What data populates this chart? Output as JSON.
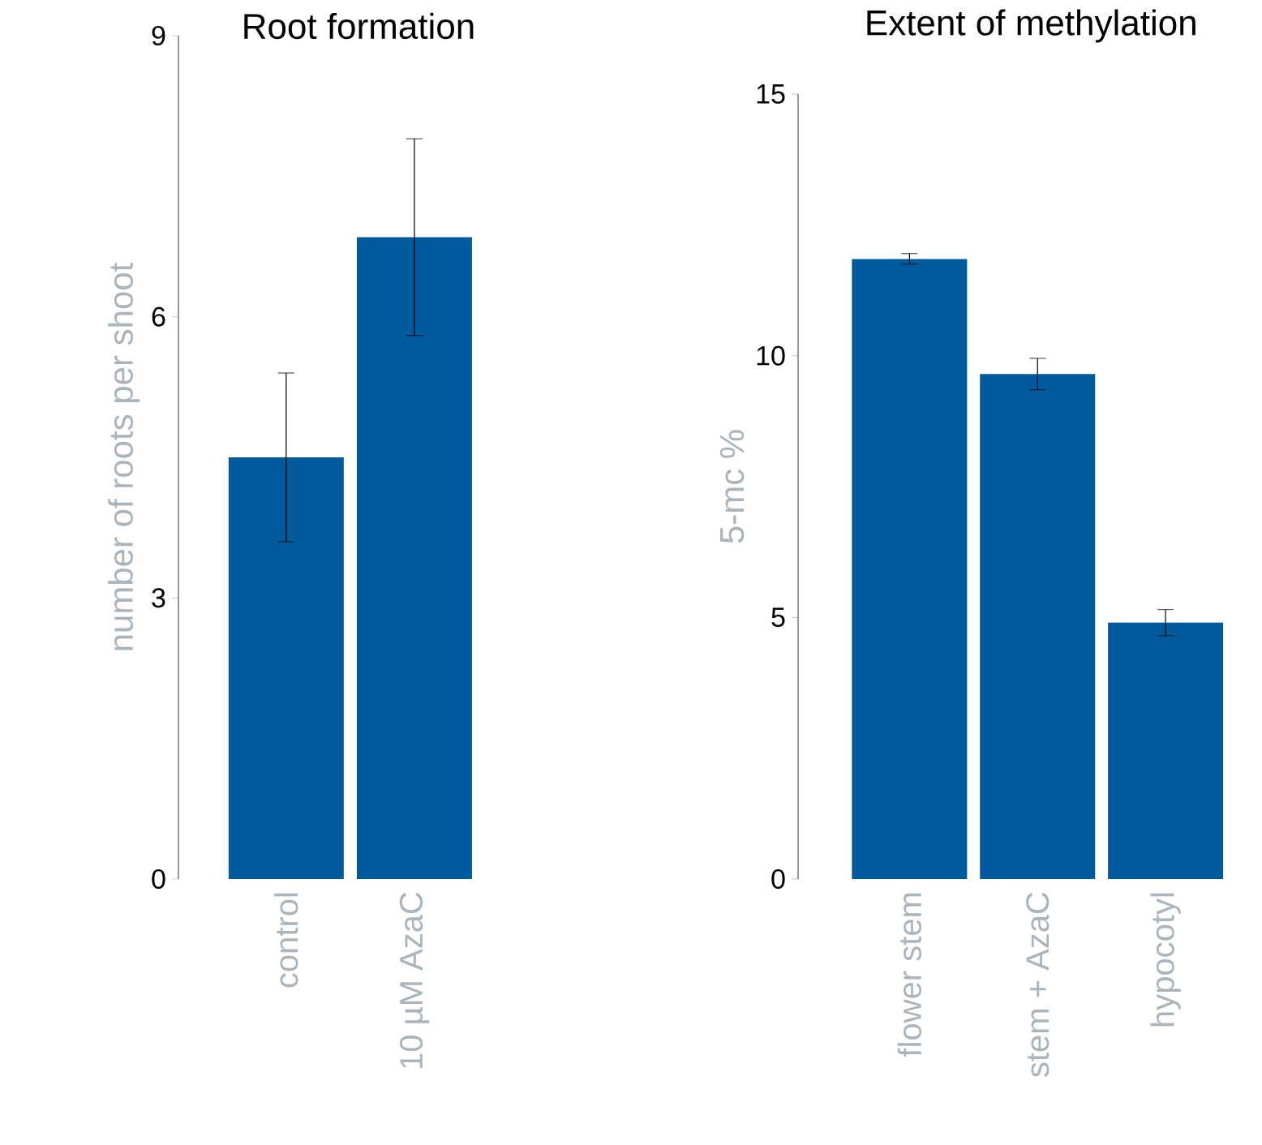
{
  "chart_data": [
    {
      "type": "bar",
      "title": "Root formation",
      "ylabel": "number of roots per shoot",
      "categories": [
        "control",
        "10 µM AzaC"
      ],
      "values": [
        4.5,
        6.85
      ],
      "errors": [
        0.9,
        1.05
      ],
      "color": "#005a9c",
      "ylim": [
        0,
        9
      ],
      "yticks": [
        0,
        3,
        6,
        9
      ],
      "grid": false
    },
    {
      "type": "bar",
      "title": "Extent of methylation",
      "ylabel": "5-mc %",
      "categories": [
        "flower stem",
        "stem + AzaC",
        "hypocotyl"
      ],
      "values": [
        11.85,
        9.65,
        4.9
      ],
      "errors": [
        0.1,
        0.3,
        0.25
      ],
      "color": "#005a9c",
      "ylim": [
        0,
        15
      ],
      "yticks": [
        0,
        5,
        10,
        15
      ],
      "grid": false
    }
  ]
}
